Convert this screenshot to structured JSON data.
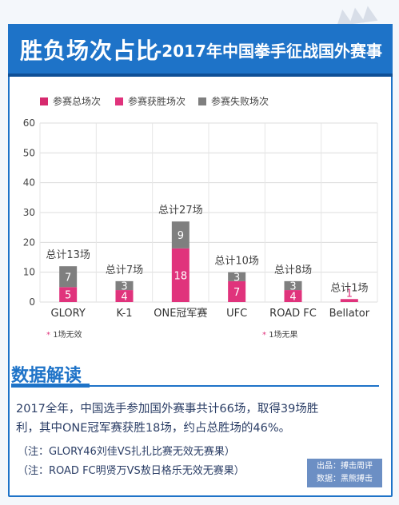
{
  "header": {
    "title": "胜负场次占比",
    "subtitle": "-2017年中国拳手征战国外赛事"
  },
  "colors": {
    "primary_blue": "#1e73c8",
    "total": "#d62a6e",
    "wins": "#e0337c",
    "losses": "#7f7f7f",
    "text_dark": "#2b3e66"
  },
  "chart_data": {
    "type": "bar",
    "stacked": true,
    "categories": [
      "GLORY",
      "K-1",
      "ONE冠军赛",
      "UFC",
      "ROAD FC",
      "Bellator"
    ],
    "series": [
      {
        "name": "参赛总场次",
        "values": [
          13,
          7,
          27,
          10,
          8,
          1
        ]
      },
      {
        "name": "参赛获胜场次",
        "values": [
          5,
          4,
          18,
          7,
          4,
          1
        ]
      },
      {
        "name": "参赛失败场次",
        "values": [
          7,
          3,
          9,
          3,
          3,
          0
        ]
      }
    ],
    "total_labels": [
      "总计13场",
      "总计7场",
      "总计27场",
      "总计10场",
      "总计8场",
      "总计1场"
    ],
    "yticks": [
      "0",
      "10",
      "20",
      "30",
      "40",
      "50",
      "60"
    ],
    "ylim": [
      0,
      60
    ],
    "grid": true,
    "legend_position": "top-left",
    "footnotes": [
      {
        "text": "1场无效",
        "category": "GLORY"
      },
      {
        "text": "1场无果",
        "category": "ROAD FC"
      }
    ]
  },
  "analysis": {
    "heading": "数据解读",
    "line1": "2017全年，中国选手参加国外赛事共计66场，取得39场胜",
    "line2": "利，其中ONE冠军赛获胜18场，约占总胜场的46%。",
    "note1": "（注：GLORY46刘佳VS扎扎比赛无效无赛果）",
    "note2": "（注：ROAD FC明贤万VS敖日格乐无效无赛果）"
  },
  "source": {
    "line1": "出品：搏击周评",
    "line2": "数据：黑熊搏击"
  }
}
